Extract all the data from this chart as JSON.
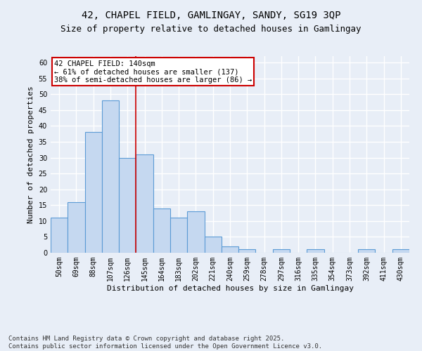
{
  "title_line1": "42, CHAPEL FIELD, GAMLINGAY, SANDY, SG19 3QP",
  "title_line2": "Size of property relative to detached houses in Gamlingay",
  "xlabel": "Distribution of detached houses by size in Gamlingay",
  "ylabel": "Number of detached properties",
  "categories": [
    "50sqm",
    "69sqm",
    "88sqm",
    "107sqm",
    "126sqm",
    "145sqm",
    "164sqm",
    "183sqm",
    "202sqm",
    "221sqm",
    "240sqm",
    "259sqm",
    "278sqm",
    "297sqm",
    "316sqm",
    "335sqm",
    "354sqm",
    "373sqm",
    "392sqm",
    "411sqm",
    "430sqm"
  ],
  "values": [
    11,
    16,
    38,
    48,
    30,
    31,
    14,
    11,
    13,
    5,
    2,
    1,
    0,
    1,
    0,
    1,
    0,
    0,
    1,
    0,
    1
  ],
  "bar_color": "#c5d8f0",
  "bar_edge_color": "#5b9bd5",
  "background_color": "#e8eef7",
  "grid_color": "#ffffff",
  "vline_x": 4.5,
  "vline_color": "#cc0000",
  "annotation_text": "42 CHAPEL FIELD: 140sqm\n← 61% of detached houses are smaller (137)\n38% of semi-detached houses are larger (86) →",
  "annotation_box_color": "#ffffff",
  "annotation_box_edge": "#cc0000",
  "ylim": [
    0,
    62
  ],
  "yticks": [
    0,
    5,
    10,
    15,
    20,
    25,
    30,
    35,
    40,
    45,
    50,
    55,
    60
  ],
  "footnote": "Contains HM Land Registry data © Crown copyright and database right 2025.\nContains public sector information licensed under the Open Government Licence v3.0.",
  "title_fontsize": 10,
  "subtitle_fontsize": 9,
  "axis_label_fontsize": 8,
  "tick_fontsize": 7,
  "annotation_fontsize": 7.5,
  "footnote_fontsize": 6.5
}
